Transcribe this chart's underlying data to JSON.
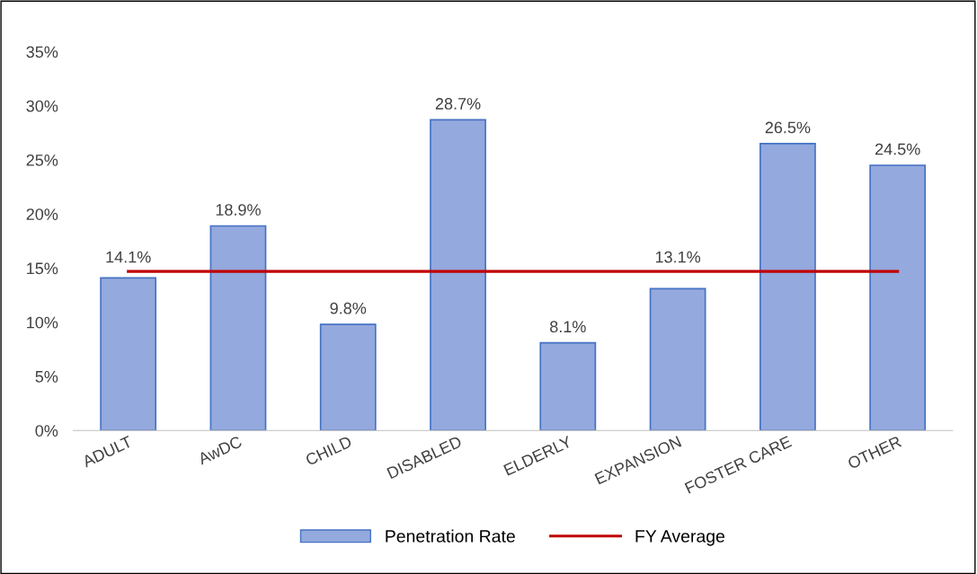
{
  "chart_data": {
    "type": "bar",
    "categories": [
      "ADULT",
      "AwDC",
      "CHILD",
      "DISABLED",
      "ELDERLY",
      "EXPANSION",
      "FOSTER CARE",
      "OTHER"
    ],
    "series": [
      {
        "name": "Penetration Rate",
        "color": "#94a9dd",
        "values": [
          14.1,
          18.9,
          9.8,
          28.7,
          8.1,
          13.1,
          26.5,
          24.5
        ],
        "value_labels": [
          "14.1%",
          "18.9%",
          "9.8%",
          "28.7%",
          "8.1%",
          "13.1%",
          "26.5%",
          "24.5%"
        ]
      },
      {
        "name": "FY Average",
        "type": "line",
        "color": "#c00000",
        "values": [
          14.7,
          14.7,
          14.7,
          14.7,
          14.7,
          14.7,
          14.7,
          14.7
        ]
      }
    ],
    "ylim": [
      0,
      35
    ],
    "yticks": [
      {
        "value": 0,
        "label": "0%"
      },
      {
        "value": 5,
        "label": "5%"
      },
      {
        "value": 10,
        "label": "10%"
      },
      {
        "value": 15,
        "label": "15%"
      },
      {
        "value": 20,
        "label": "20%"
      },
      {
        "value": 25,
        "label": "25%"
      },
      {
        "value": 30,
        "label": "30%"
      },
      {
        "value": 35,
        "label": "35%"
      }
    ],
    "grid": false,
    "legend": "bottom",
    "marker": "none",
    "line_style": "solid"
  }
}
